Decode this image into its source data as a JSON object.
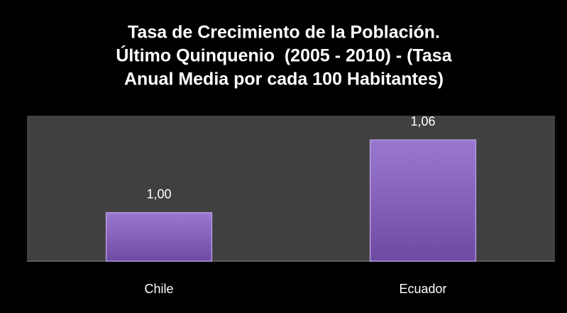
{
  "chart_data": {
    "type": "bar",
    "title": [
      "Tasa de Crecimiento de la Población.",
      "Último Quinquenio  (2005 - 2010) - (Tasa",
      "Anual Media por cada 100 Habitantes)"
    ],
    "categories": [
      "Chile",
      "Ecuador"
    ],
    "values": [
      1.0,
      1.06
    ],
    "value_labels": [
      "1,00",
      "1,06"
    ],
    "color": "#8a63c0",
    "ylim": [
      0.96,
      1.08
    ]
  }
}
